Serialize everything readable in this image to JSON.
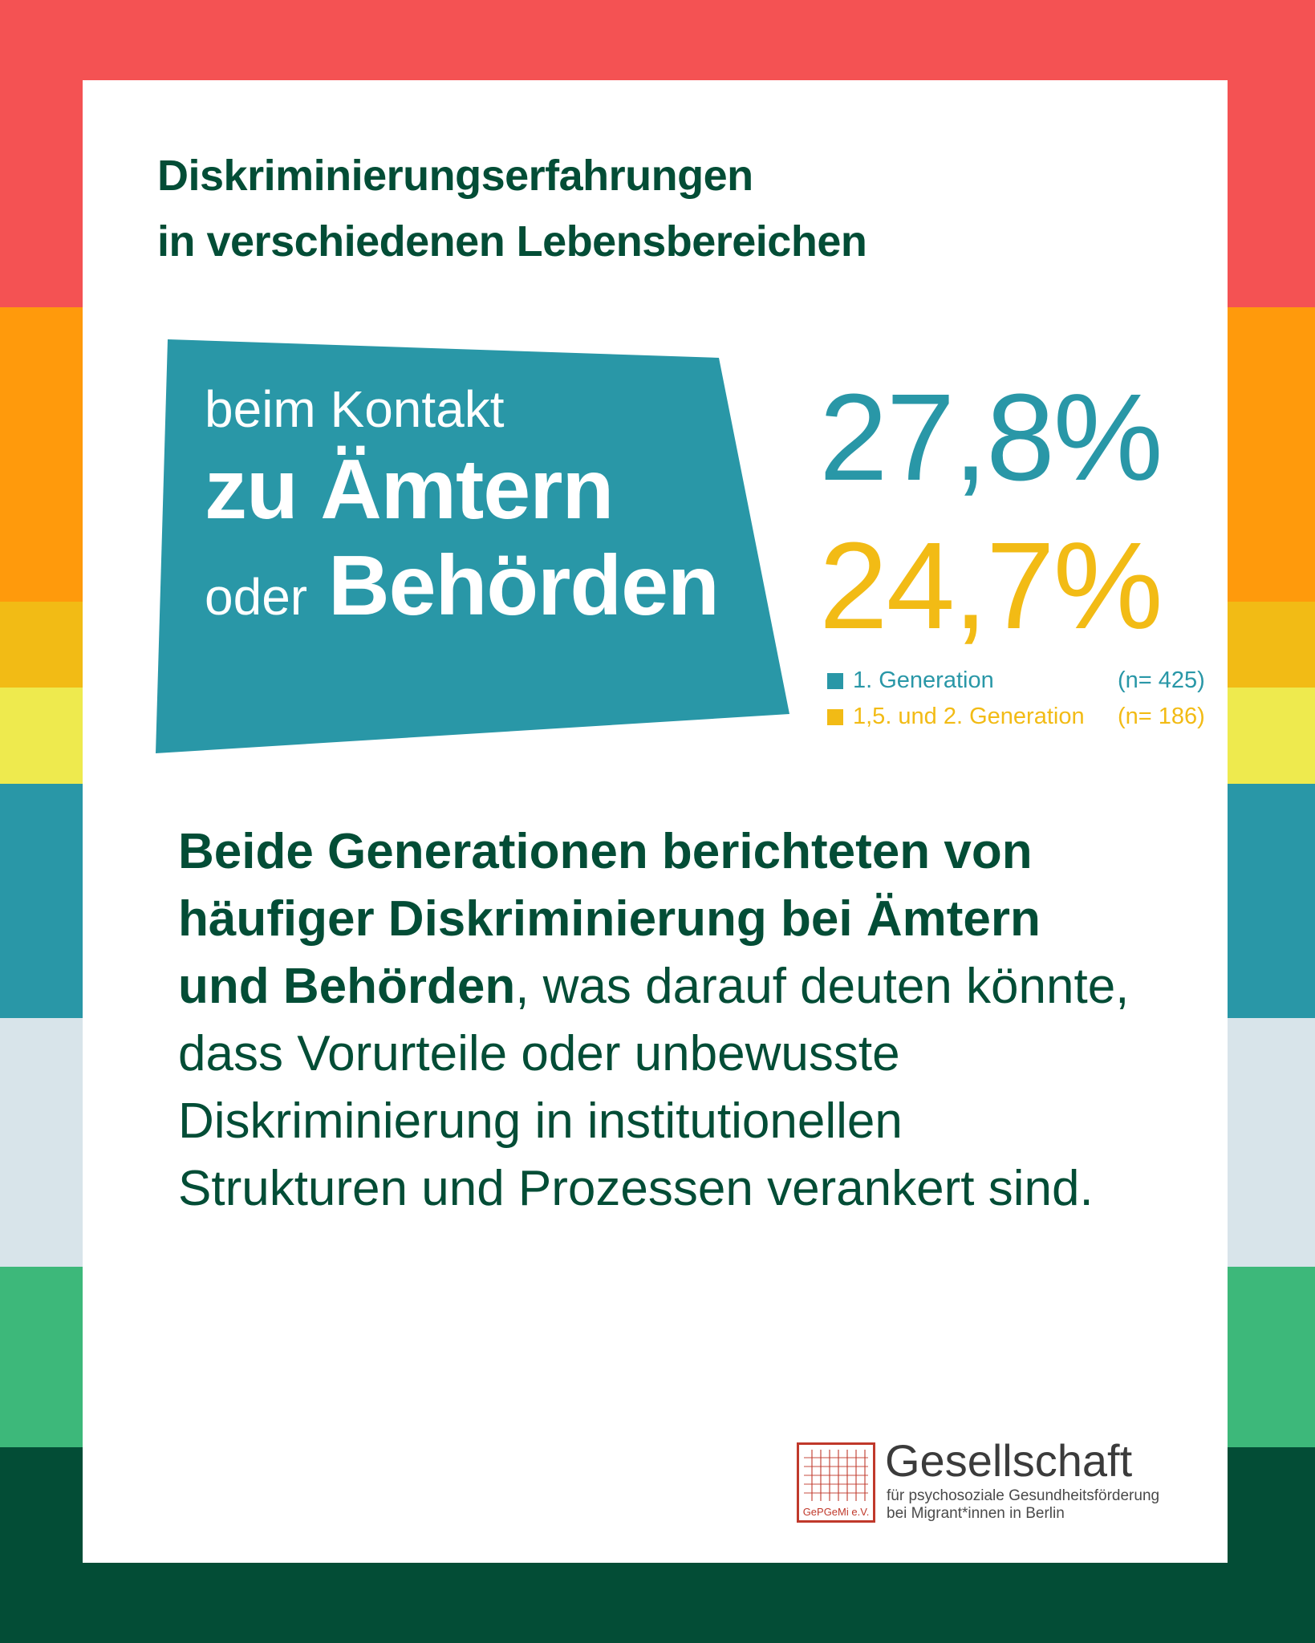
{
  "colors": {
    "stripe_red": "#f45253",
    "stripe_orange": "#ff9a0c",
    "stripe_amber": "#f2bb15",
    "stripe_yellow": "#eeea4e",
    "stripe_teal": "#2997a7",
    "stripe_grey": "#d8e4ea",
    "stripe_green": "#3db87a",
    "stripe_darkgreen": "#034d36",
    "title_green": "#034d36",
    "teal": "#2997a7",
    "gold": "#f2bb15",
    "seal_red": "#c0392b"
  },
  "title": {
    "line1": "Diskriminierungserfahrungen",
    "line2": "in verschiedenen Lebensbereichen"
  },
  "banner": {
    "line1": "beim Kontakt",
    "line2": "zu Ämtern",
    "line3_small": "oder",
    "line3_big": "Behörden"
  },
  "stats": {
    "first_generation": "27,8%",
    "later_generation": "24,7%"
  },
  "legend": [
    {
      "label": "1.  Generation",
      "n": "(n= 425)",
      "color": "#2997a7"
    },
    {
      "label": "1,5. und 2.  Generation",
      "n": "(n= 186)",
      "color": "#f2bb15"
    }
  ],
  "body": {
    "bold": "Beide Generationen berichteten von häufiger Diskriminierung bei Ämtern und Behörden",
    "rest": ", was darauf deuten könnte, dass Vorurteile oder unbewusste Diskriminierung in institutionellen Strukturen und Prozessen verankert sind."
  },
  "logo": {
    "seal_text": "GePGeMi e.V.",
    "name": "Gesellschaft",
    "sub_line1": "für psychosoziale Gesundheitsförderung",
    "sub_line2": "bei Migrant*innen in Berlin",
    "icon": "seal-icon"
  }
}
